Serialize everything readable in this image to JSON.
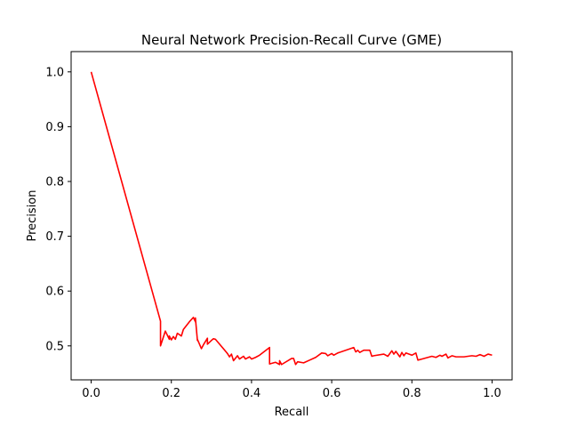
{
  "chart_data": {
    "type": "line",
    "title": "Neural Network Precision-Recall Curve (GME)",
    "xlabel": "Recall",
    "ylabel": "Precision",
    "xlim": [
      -0.05,
      1.05
    ],
    "ylim": [
      0.438,
      1.037
    ],
    "xticks": [
      0.0,
      0.2,
      0.4,
      0.6,
      0.8,
      1.0
    ],
    "xtick_labels": [
      "0.0",
      "0.2",
      "0.4",
      "0.6",
      "0.8",
      "1.0"
    ],
    "yticks": [
      0.5,
      0.6,
      0.7,
      0.8,
      0.9,
      1.0
    ],
    "ytick_labels": [
      "0.5",
      "0.6",
      "0.7",
      "0.8",
      "0.9",
      "1.0"
    ],
    "grid": false,
    "legend": false,
    "series": [
      {
        "color": "#ff0000",
        "x": [
          0.0,
          0.173,
          0.173,
          0.185,
          0.195,
          0.195,
          0.2,
          0.205,
          0.21,
          0.215,
          0.225,
          0.23,
          0.245,
          0.255,
          0.26,
          0.26,
          0.265,
          0.265,
          0.275,
          0.28,
          0.29,
          0.29,
          0.3,
          0.305,
          0.31,
          0.34,
          0.345,
          0.35,
          0.355,
          0.365,
          0.37,
          0.38,
          0.385,
          0.395,
          0.4,
          0.41,
          0.42,
          0.445,
          0.445,
          0.46,
          0.47,
          0.47,
          0.475,
          0.5,
          0.505,
          0.51,
          0.515,
          0.53,
          0.545,
          0.56,
          0.575,
          0.585,
          0.59,
          0.6,
          0.605,
          0.615,
          0.655,
          0.66,
          0.665,
          0.67,
          0.68,
          0.695,
          0.7,
          0.705,
          0.73,
          0.74,
          0.75,
          0.755,
          0.76,
          0.77,
          0.775,
          0.78,
          0.785,
          0.8,
          0.81,
          0.815,
          0.825,
          0.84,
          0.85,
          0.86,
          0.87,
          0.875,
          0.885,
          0.89,
          0.9,
          0.91,
          0.93,
          0.95,
          0.96,
          0.97,
          0.98,
          0.99,
          1.0
        ],
        "y": [
          1.0,
          0.545,
          0.5,
          0.527,
          0.512,
          0.518,
          0.511,
          0.517,
          0.512,
          0.523,
          0.518,
          0.53,
          0.544,
          0.552,
          0.544,
          0.551,
          0.51,
          0.512,
          0.495,
          0.502,
          0.514,
          0.503,
          0.51,
          0.513,
          0.512,
          0.486,
          0.48,
          0.485,
          0.473,
          0.482,
          0.476,
          0.481,
          0.476,
          0.48,
          0.476,
          0.479,
          0.483,
          0.497,
          0.467,
          0.47,
          0.466,
          0.473,
          0.466,
          0.477,
          0.477,
          0.466,
          0.471,
          0.469,
          0.474,
          0.479,
          0.487,
          0.486,
          0.482,
          0.486,
          0.483,
          0.487,
          0.497,
          0.489,
          0.492,
          0.488,
          0.492,
          0.492,
          0.481,
          0.482,
          0.485,
          0.481,
          0.491,
          0.485,
          0.49,
          0.48,
          0.488,
          0.482,
          0.487,
          0.483,
          0.487,
          0.474,
          0.476,
          0.479,
          0.481,
          0.479,
          0.483,
          0.481,
          0.485,
          0.478,
          0.482,
          0.48,
          0.48,
          0.482,
          0.481,
          0.484,
          0.481,
          0.485,
          0.483
        ]
      }
    ]
  }
}
